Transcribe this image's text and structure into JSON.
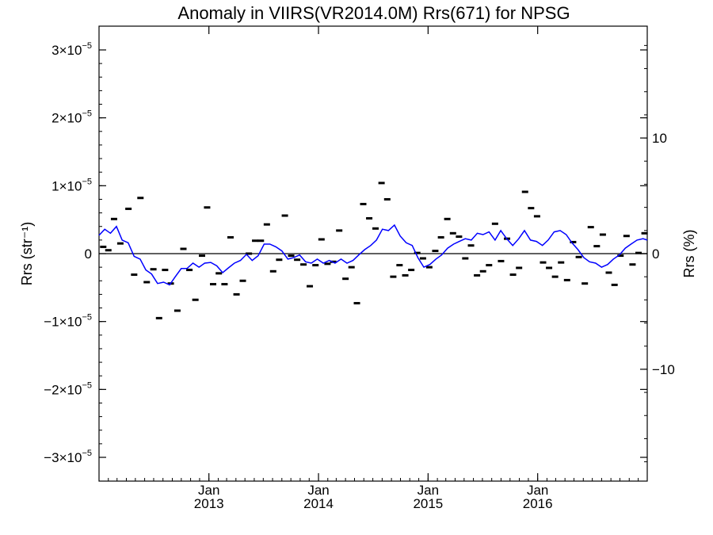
{
  "chart_data": {
    "type": "scatter",
    "title": "Anomaly in VIIRS(VR2014.0M) Rrs(671) for NPSG",
    "ylabel": "Rrs (str⁻¹)",
    "y2label": "Rrs (%)",
    "x_axis": "date",
    "xlim": [
      "2012-01-01",
      "2016-12-31"
    ],
    "ylim": [
      -3.35e-05,
      3.35e-05
    ],
    "y2lim": [
      -19.67,
      19.67
    ],
    "y_ticks": [
      {
        "value": -3e-05,
        "mantissa": "−3",
        "times": "×10",
        "exp": "−5"
      },
      {
        "value": -2e-05,
        "mantissa": "−2",
        "times": "×10",
        "exp": "−5"
      },
      {
        "value": -1e-05,
        "mantissa": "−1",
        "times": "×10",
        "exp": "−5"
      },
      {
        "value": 0,
        "mantissa": "0",
        "times": "",
        "exp": ""
      },
      {
        "value": 1e-05,
        "mantissa": "1",
        "times": "×10",
        "exp": "−5"
      },
      {
        "value": 2e-05,
        "mantissa": "2",
        "times": "×10",
        "exp": "−5"
      },
      {
        "value": 3e-05,
        "mantissa": "3",
        "times": "×10",
        "exp": "−5"
      }
    ],
    "y2_ticks": [
      {
        "value": -10,
        "label": "−10"
      },
      {
        "value": 0,
        "label": "0"
      },
      {
        "value": 10,
        "label": "10"
      }
    ],
    "x_ticks": [
      {
        "date": "2013-01-01",
        "line1": "Jan",
        "line2": "2013"
      },
      {
        "date": "2014-01-01",
        "line1": "Jan",
        "line2": "2014"
      },
      {
        "date": "2015-01-01",
        "line1": "Jan",
        "line2": "2015"
      },
      {
        "date": "2016-01-01",
        "line1": "Jan",
        "line2": "2016"
      }
    ],
    "zero_line": 0,
    "series": [
      {
        "kind": "points",
        "color": "#000000",
        "x": [
          "2012-01-15",
          "2012-02-01",
          "2012-02-20",
          "2012-03-12",
          "2012-04-08",
          "2012-04-27",
          "2012-05-18",
          "2012-06-08",
          "2012-06-30",
          "2012-07-19",
          "2012-08-08",
          "2012-08-27",
          "2012-09-18",
          "2012-10-08",
          "2012-10-28",
          "2012-11-17",
          "2012-12-09",
          "2012-12-26",
          "2013-01-15",
          "2013-02-03",
          "2013-02-22",
          "2013-03-14",
          "2013-04-03",
          "2013-04-24",
          "2013-05-14",
          "2013-06-04",
          "2013-06-23",
          "2013-07-13",
          "2013-08-03",
          "2013-08-23",
          "2013-09-11",
          "2013-10-02",
          "2013-10-22",
          "2013-11-12",
          "2013-12-03",
          "2013-12-22",
          "2014-01-11",
          "2014-01-31",
          "2014-02-19",
          "2014-03-11",
          "2014-04-01",
          "2014-04-21",
          "2014-05-09",
          "2014-05-30",
          "2014-06-19",
          "2014-07-10",
          "2014-07-30",
          "2014-08-18",
          "2014-09-07",
          "2014-09-28",
          "2014-10-17",
          "2014-11-06",
          "2014-11-26",
          "2014-12-15",
          "2015-01-05",
          "2015-01-25",
          "2015-02-13",
          "2015-03-06",
          "2015-03-25",
          "2015-04-14",
          "2015-05-05",
          "2015-05-24",
          "2015-06-13",
          "2015-07-03",
          "2015-07-23",
          "2015-08-12",
          "2015-09-01",
          "2015-09-21",
          "2015-10-11",
          "2015-10-31",
          "2015-11-20",
          "2015-12-10",
          "2015-12-30",
          "2016-01-19",
          "2016-02-08",
          "2016-02-28",
          "2016-03-19",
          "2016-04-08",
          "2016-04-28",
          "2016-05-17",
          "2016-06-06",
          "2016-06-26",
          "2016-07-16",
          "2016-08-05",
          "2016-08-25",
          "2016-09-13",
          "2016-10-03",
          "2016-10-23",
          "2016-11-12",
          "2016-12-02",
          "2016-12-22"
        ],
        "y": [
          1e-06,
          5e-07,
          5.1e-06,
          1.5e-06,
          6.6e-06,
          -3.1e-06,
          8.2e-06,
          -4.2e-06,
          -2.3e-06,
          -9.5e-06,
          -2.4e-06,
          -4.4e-06,
          -8.4e-06,
          7e-07,
          -2.4e-06,
          -6.8e-06,
          -3e-07,
          6.8e-06,
          -4.5e-06,
          -2.9e-06,
          -4.5e-06,
          2.4e-06,
          -6e-06,
          -4e-06,
          0.0,
          1.9e-06,
          1.9e-06,
          4.3e-06,
          -2.6e-06,
          -9e-07,
          5.6e-06,
          -3e-07,
          -9e-07,
          -1.6e-06,
          -4.8e-06,
          -1.7e-06,
          2.1e-06,
          -1.5e-06,
          -1.2e-06,
          3.4e-06,
          -3.7e-06,
          -2e-06,
          -7.3e-06,
          7.3e-06,
          5.2e-06,
          3.7e-06,
          1.04e-05,
          8e-06,
          -3.4e-06,
          -1.7e-06,
          -3.2e-06,
          -2.4e-06,
          1e-07,
          -7e-07,
          -2e-06,
          4e-07,
          2.4e-06,
          5.1e-06,
          3e-06,
          2.5e-06,
          -7e-07,
          1.2e-06,
          -3.2e-06,
          -2.6e-06,
          -1.7e-06,
          4.4e-06,
          -1.1e-06,
          2.2e-06,
          -3.1e-06,
          -2.1e-06,
          9.1e-06,
          6.7e-06,
          5.5e-06,
          -1.3e-06,
          -2.1e-06,
          -3.4e-06,
          -1.3e-06,
          -3.9e-06,
          1.7e-06,
          -5e-07,
          -4.4e-06,
          3.9e-06,
          1.1e-06,
          2.8e-06,
          -2.8e-06,
          -4.6e-06,
          -3e-07,
          2.6e-06,
          -1.6e-06,
          1e-07,
          3e-06
        ]
      },
      {
        "kind": "line",
        "color": "#0000ff",
        "x": [
          "2012-01-01",
          "2012-01-20",
          "2012-02-08",
          "2012-02-28",
          "2012-03-18",
          "2012-04-07",
          "2012-04-27",
          "2012-05-17",
          "2012-06-05",
          "2012-06-24",
          "2012-07-14",
          "2012-08-03",
          "2012-08-23",
          "2012-09-11",
          "2012-10-01",
          "2012-10-20",
          "2012-11-09",
          "2012-11-29",
          "2012-12-18",
          "2013-01-07",
          "2013-01-27",
          "2013-02-16",
          "2013-03-07",
          "2013-03-27",
          "2013-04-16",
          "2013-05-06",
          "2013-05-25",
          "2013-06-14",
          "2013-07-04",
          "2013-07-23",
          "2013-08-12",
          "2013-09-01",
          "2013-09-21",
          "2013-10-10",
          "2013-10-30",
          "2013-11-19",
          "2013-12-08",
          "2013-12-28",
          "2014-01-17",
          "2014-02-06",
          "2014-02-25",
          "2014-03-17",
          "2014-04-06",
          "2014-04-26",
          "2014-05-15",
          "2014-06-04",
          "2014-06-24",
          "2014-07-13",
          "2014-08-02",
          "2014-08-22",
          "2014-09-11",
          "2014-09-30",
          "2014-10-20",
          "2014-11-09",
          "2014-11-28",
          "2014-12-18",
          "2015-01-07",
          "2015-01-27",
          "2015-02-15",
          "2015-03-07",
          "2015-03-27",
          "2015-04-15",
          "2015-05-05",
          "2015-05-25",
          "2015-06-14",
          "2015-07-03",
          "2015-07-23",
          "2015-08-12",
          "2015-08-31",
          "2015-09-20",
          "2015-10-10",
          "2015-10-30",
          "2015-11-18",
          "2015-12-08",
          "2015-12-28",
          "2016-01-17",
          "2016-02-05",
          "2016-02-25",
          "2016-03-16",
          "2016-04-05",
          "2016-04-24",
          "2016-05-14",
          "2016-06-03",
          "2016-06-22",
          "2016-07-12",
          "2016-08-01",
          "2016-08-21",
          "2016-09-09",
          "2016-09-29",
          "2016-10-19",
          "2016-11-07",
          "2016-11-27",
          "2016-12-17",
          "2016-12-31"
        ],
        "y": [
          2.7e-06,
          3.6e-06,
          3e-06,
          4e-06,
          2e-06,
          1.6e-06,
          -4e-07,
          -8e-07,
          -2.4e-06,
          -3e-06,
          -4.4e-06,
          -4.2e-06,
          -4.6e-06,
          -3.4e-06,
          -2.2e-06,
          -2.2e-06,
          -1.4e-06,
          -2e-06,
          -1.4e-06,
          -1.3e-06,
          -1.8e-06,
          -2.8e-06,
          -2.1e-06,
          -1.4e-06,
          -1e-06,
          -1e-07,
          -1e-06,
          -3e-07,
          1.4e-06,
          1.4e-06,
          1e-06,
          4e-07,
          -8e-07,
          -6e-07,
          -2e-07,
          -1.2e-06,
          -1.4e-06,
          -8e-07,
          -1.4e-06,
          -1e-06,
          -1.4e-06,
          -8e-07,
          -1.4e-06,
          -1e-06,
          -2e-07,
          6e-07,
          1.2e-06,
          2e-06,
          3.6e-06,
          3.4e-06,
          4.2e-06,
          2.6e-06,
          1.6e-06,
          1.2e-06,
          -6e-07,
          -2e-06,
          -1.6e-06,
          -8e-07,
          -2e-07,
          8e-07,
          1.4e-06,
          1.8e-06,
          2.2e-06,
          2e-06,
          3e-06,
          2.8e-06,
          3.2e-06,
          2e-06,
          3.4e-06,
          2.2e-06,
          1.2e-06,
          2.2e-06,
          3.4e-06,
          2e-06,
          1.8e-06,
          1.2e-06,
          2e-06,
          3.2e-06,
          3.4e-06,
          2.8e-06,
          1.6e-06,
          6e-07,
          -6e-07,
          -1.2e-06,
          -1.4e-06,
          -2e-06,
          -1.6e-06,
          -8e-07,
          -2e-07,
          8e-07,
          1.4e-06,
          2e-06,
          2.2e-06,
          2e-06
        ]
      }
    ]
  }
}
